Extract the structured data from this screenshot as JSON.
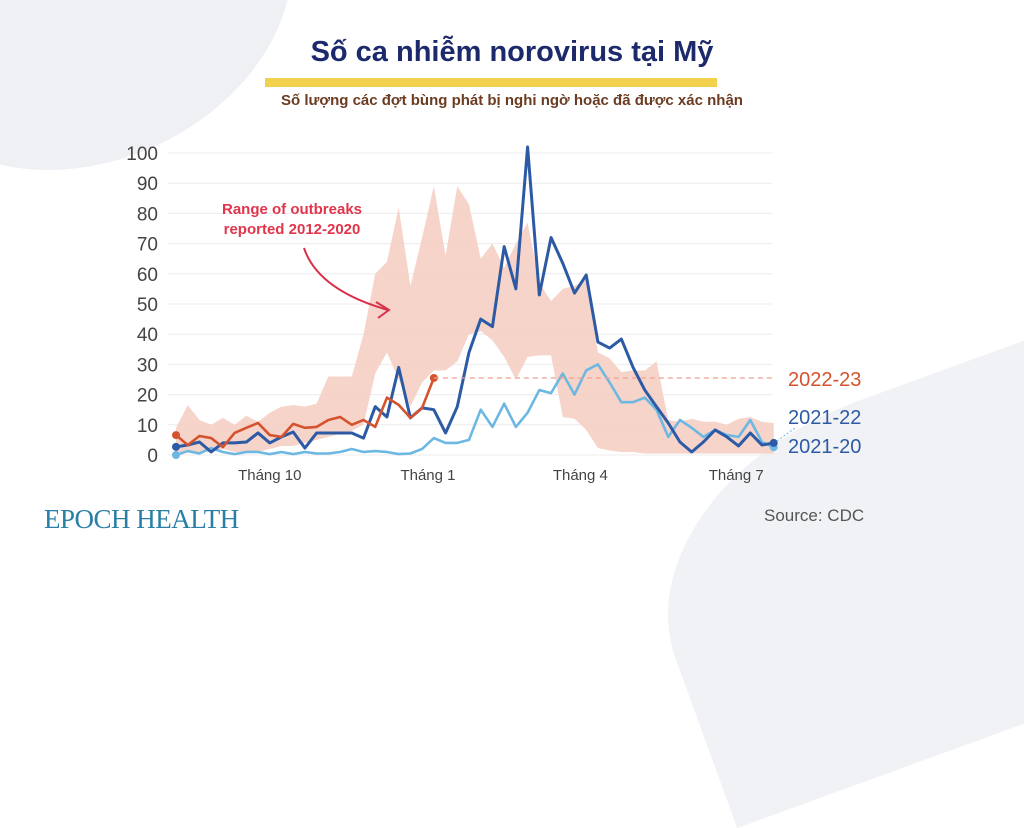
{
  "title": "Số ca nhiễm norovirus tại Mỹ",
  "subtitle": "Số lượng các đợt bùng phát bị nghi ngờ hoặc đã được xác nhận",
  "brand": "EPOCH HEALTH",
  "source": "Source: CDC",
  "chart_data": {
    "type": "line",
    "ylim": [
      0,
      100
    ],
    "y_ticks": [
      0,
      10,
      20,
      30,
      40,
      50,
      60,
      70,
      80,
      90,
      100
    ],
    "grid": true,
    "x_ticks": [
      {
        "week": 8,
        "label": "Tháng 10"
      },
      {
        "week": 21.5,
        "label": "Tháng 1"
      },
      {
        "week": 34.5,
        "label": "Tháng 4"
      },
      {
        "week": 47.8,
        "label": "Tháng 7"
      }
    ],
    "annotation": {
      "line1": "Range of outbreaks",
      "line2": "reported 2012-2020"
    },
    "band": {
      "name": "Range of outbreaks reported 2012-2020",
      "color": "#f5cfc4",
      "upper": [
        9,
        16.5,
        11.6,
        10,
        12.3,
        10,
        13,
        11,
        14,
        16,
        16.5,
        16,
        17,
        26,
        26,
        26,
        40,
        60,
        64,
        82,
        56,
        72,
        89,
        66,
        89,
        83,
        65,
        70,
        62,
        70,
        77,
        57,
        51,
        55,
        56,
        58,
        34,
        32,
        27.5,
        28,
        28,
        31,
        11.6,
        11,
        12,
        11,
        11,
        10,
        12,
        12.6,
        11,
        10.6
      ],
      "lower": [
        1,
        1,
        1,
        1,
        2,
        1,
        1,
        1,
        2,
        3,
        3,
        4,
        5,
        6,
        7,
        8,
        10,
        27,
        34,
        25,
        16,
        24,
        28,
        28,
        31,
        40,
        41,
        38,
        32.5,
        25,
        32.5,
        33,
        33,
        12.6,
        12,
        8.3,
        2.3,
        1.5,
        1,
        1,
        0.5,
        0.5,
        0.5,
        0.5,
        0.5,
        0.5,
        0.5,
        0.5,
        0.5,
        0.5,
        0.5,
        0.5
      ]
    },
    "series": [
      {
        "name": "2022-23",
        "color": "#d4532e",
        "dashed_reference": 25.5,
        "values": [
          6.6,
          3.3,
          6.3,
          5.6,
          2.6,
          7.3,
          9,
          10.6,
          6.6,
          6,
          10.3,
          9,
          9.3,
          11.6,
          12.6,
          10,
          11.6,
          9.3,
          19,
          16.6,
          12.3,
          15.6,
          25.5
        ]
      },
      {
        "name": "2021-22",
        "color": "#2d5aa5",
        "values": [
          2.7,
          3.3,
          4.3,
          1,
          4,
          4,
          4.3,
          7.3,
          4,
          6,
          7.6,
          2.3,
          7.3,
          7.3,
          7.3,
          7.3,
          5.6,
          16,
          12.6,
          29,
          12.3,
          15.6,
          15,
          7.3,
          16,
          34,
          45,
          42.5,
          69,
          55,
          102,
          53,
          72,
          63.5,
          53.6,
          59.6,
          37.4,
          35.4,
          38.4,
          29,
          21.5,
          16,
          10.6,
          4.3,
          1,
          4.3,
          8.3,
          6,
          3,
          7.3,
          3.3,
          4
        ]
      },
      {
        "name": "2021-20",
        "color": "#6db8e2",
        "values": [
          0,
          1.3,
          0.5,
          2.3,
          1,
          0.3,
          1,
          1,
          0.3,
          1,
          0.3,
          1,
          0.5,
          0.5,
          1,
          2,
          1,
          1.3,
          1,
          0.3,
          0.5,
          2,
          5.6,
          4,
          4,
          5,
          15,
          9.3,
          17,
          9.3,
          14,
          21.5,
          20.5,
          27,
          20,
          28,
          30,
          24,
          17.5,
          17.5,
          19,
          15,
          6,
          11.6,
          9,
          6,
          8.3,
          6.6,
          6,
          11.6,
          4.3,
          2.6
        ]
      }
    ]
  }
}
